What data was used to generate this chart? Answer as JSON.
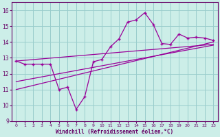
{
  "xlabel": "Windchill (Refroidissement éolien,°C)",
  "background_color": "#cceee8",
  "grid_color": "#99cccc",
  "line_color": "#990099",
  "x_data": [
    0,
    1,
    2,
    3,
    4,
    5,
    6,
    7,
    8,
    9,
    10,
    11,
    12,
    13,
    14,
    15,
    16,
    17,
    18,
    19,
    20,
    21,
    22,
    23
  ],
  "y_scatter": [
    12.8,
    12.6,
    12.6,
    12.6,
    12.6,
    11.0,
    11.15,
    9.75,
    10.55,
    12.75,
    12.9,
    13.7,
    14.2,
    15.25,
    15.4,
    15.85,
    15.1,
    13.9,
    13.85,
    14.5,
    14.25,
    14.3,
    14.25,
    14.1
  ],
  "reg_line1_x": [
    0,
    23
  ],
  "reg_line1_y": [
    12.8,
    13.85
  ],
  "reg_line2_x": [
    0,
    23
  ],
  "reg_line2_y": [
    11.0,
    14.0
  ],
  "reg_line3_x": [
    0,
    23
  ],
  "reg_line3_y": [
    11.5,
    13.8
  ],
  "ylim": [
    9,
    16.5
  ],
  "xlim": [
    -0.5,
    23.5
  ],
  "yticks": [
    9,
    10,
    11,
    12,
    13,
    14,
    15,
    16
  ],
  "xticks": [
    0,
    1,
    2,
    3,
    4,
    5,
    6,
    7,
    8,
    9,
    10,
    11,
    12,
    13,
    14,
    15,
    16,
    17,
    18,
    19,
    20,
    21,
    22,
    23
  ]
}
